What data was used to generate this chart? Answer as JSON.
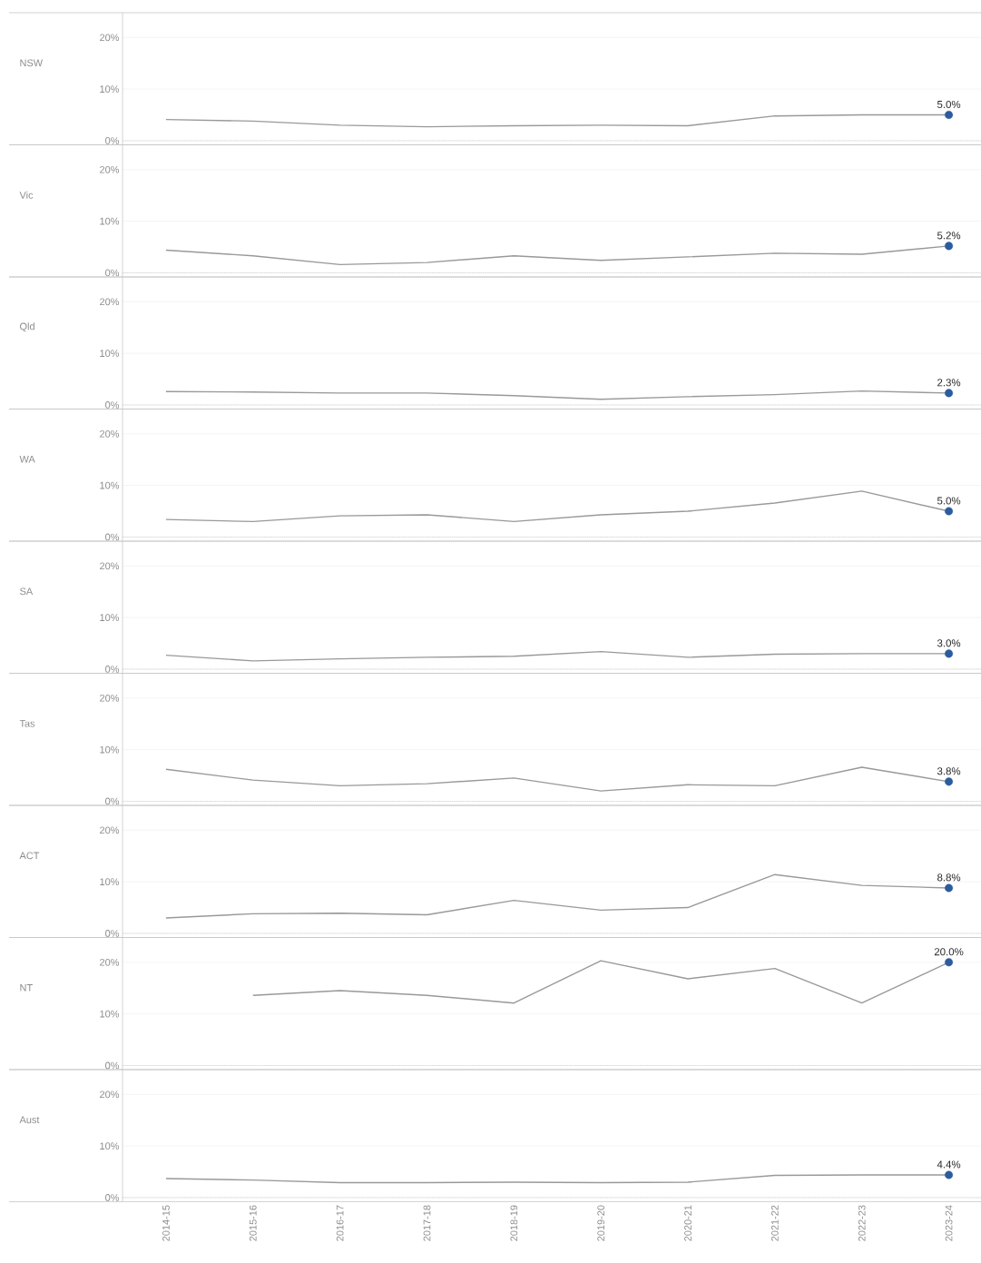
{
  "chart_data": [
    {
      "type": "line",
      "ylabel": "NSW",
      "categories": [
        "2014-15",
        "2015-16",
        "2016-17",
        "2017-18",
        "2018-19",
        "2019-20",
        "2020-21",
        "2021-22",
        "2022-23",
        "2023-24"
      ],
      "series": [
        {
          "type": "line",
          "color": "#999999",
          "values": [
            4.1,
            3.8,
            3.0,
            2.7,
            2.9,
            3.0,
            2.9,
            4.8,
            5.0,
            5.0
          ]
        },
        {
          "type": "scatter",
          "color": "#2b5c9e",
          "marker": "circle",
          "values": [
            null,
            null,
            null,
            null,
            null,
            null,
            null,
            null,
            null,
            5.0
          ],
          "value_labels": [
            null,
            null,
            null,
            null,
            null,
            null,
            null,
            null,
            null,
            "5.0%"
          ]
        }
      ],
      "ylim": [
        -0.8,
        24.8
      ],
      "yticks": [
        {
          "value": 0,
          "label": "0%"
        },
        {
          "value": 10,
          "label": "10%"
        },
        {
          "value": 20,
          "label": "20%"
        }
      ],
      "grid": "y",
      "tick_labels": "y",
      "ref_lines": [
        {
          "axis": "y",
          "value": 0,
          "line_style": "dotted",
          "color": "#bbbbbb"
        }
      ]
    },
    {
      "type": "line",
      "ylabel": "Vic",
      "categories": [
        "2014-15",
        "2015-16",
        "2016-17",
        "2017-18",
        "2018-19",
        "2019-20",
        "2020-21",
        "2021-22",
        "2022-23",
        "2023-24"
      ],
      "series": [
        {
          "type": "line",
          "color": "#999999",
          "values": [
            4.4,
            3.3,
            1.6,
            2.0,
            3.3,
            2.4,
            3.1,
            3.8,
            3.6,
            5.2
          ]
        },
        {
          "type": "scatter",
          "color": "#2b5c9e",
          "marker": "circle",
          "values": [
            null,
            null,
            null,
            null,
            null,
            null,
            null,
            null,
            null,
            5.2
          ],
          "value_labels": [
            null,
            null,
            null,
            null,
            null,
            null,
            null,
            null,
            null,
            "5.2%"
          ]
        }
      ],
      "ylim": [
        -0.8,
        24.8
      ],
      "yticks": [
        {
          "value": 0,
          "label": "0%"
        },
        {
          "value": 10,
          "label": "10%"
        },
        {
          "value": 20,
          "label": "20%"
        }
      ],
      "grid": "y",
      "tick_labels": "y",
      "ref_lines": [
        {
          "axis": "y",
          "value": 0,
          "line_style": "dotted",
          "color": "#bbbbbb"
        }
      ]
    },
    {
      "type": "line",
      "ylabel": "Qld",
      "categories": [
        "2014-15",
        "2015-16",
        "2016-17",
        "2017-18",
        "2018-19",
        "2019-20",
        "2020-21",
        "2021-22",
        "2022-23",
        "2023-24"
      ],
      "series": [
        {
          "type": "line",
          "color": "#999999",
          "values": [
            2.6,
            2.5,
            2.3,
            2.3,
            1.8,
            1.1,
            1.6,
            2.0,
            2.7,
            2.3
          ]
        },
        {
          "type": "scatter",
          "color": "#2b5c9e",
          "marker": "circle",
          "values": [
            null,
            null,
            null,
            null,
            null,
            null,
            null,
            null,
            null,
            2.3
          ],
          "value_labels": [
            null,
            null,
            null,
            null,
            null,
            null,
            null,
            null,
            null,
            "2.3%"
          ]
        }
      ],
      "ylim": [
        -0.8,
        24.8
      ],
      "yticks": [
        {
          "value": 0,
          "label": "0%"
        },
        {
          "value": 10,
          "label": "10%"
        },
        {
          "value": 20,
          "label": "20%"
        }
      ],
      "grid": "y",
      "tick_labels": "y",
      "ref_lines": [
        {
          "axis": "y",
          "value": 0,
          "line_style": "dotted",
          "color": "#bbbbbb"
        }
      ]
    },
    {
      "type": "line",
      "ylabel": "WA",
      "categories": [
        "2014-15",
        "2015-16",
        "2016-17",
        "2017-18",
        "2018-19",
        "2019-20",
        "2020-21",
        "2021-22",
        "2022-23",
        "2023-24"
      ],
      "series": [
        {
          "type": "line",
          "color": "#999999",
          "values": [
            3.4,
            3.0,
            4.1,
            4.3,
            3.0,
            4.3,
            5.0,
            6.6,
            8.9,
            5.0
          ]
        },
        {
          "type": "scatter",
          "color": "#2b5c9e",
          "marker": "circle",
          "values": [
            null,
            null,
            null,
            null,
            null,
            null,
            null,
            null,
            null,
            5.0
          ],
          "value_labels": [
            null,
            null,
            null,
            null,
            null,
            null,
            null,
            null,
            null,
            "5.0%"
          ]
        }
      ],
      "ylim": [
        -0.8,
        24.8
      ],
      "yticks": [
        {
          "value": 0,
          "label": "0%"
        },
        {
          "value": 10,
          "label": "10%"
        },
        {
          "value": 20,
          "label": "20%"
        }
      ],
      "grid": "y",
      "tick_labels": "y",
      "ref_lines": [
        {
          "axis": "y",
          "value": 0,
          "line_style": "dotted",
          "color": "#bbbbbb"
        }
      ]
    },
    {
      "type": "line",
      "ylabel": "SA",
      "categories": [
        "2014-15",
        "2015-16",
        "2016-17",
        "2017-18",
        "2018-19",
        "2019-20",
        "2020-21",
        "2021-22",
        "2022-23",
        "2023-24"
      ],
      "series": [
        {
          "type": "line",
          "color": "#999999",
          "values": [
            2.7,
            1.6,
            2.0,
            2.3,
            2.5,
            3.4,
            2.3,
            2.9,
            3.0,
            3.0
          ]
        },
        {
          "type": "scatter",
          "color": "#2b5c9e",
          "marker": "circle",
          "values": [
            null,
            null,
            null,
            null,
            null,
            null,
            null,
            null,
            null,
            3.0
          ],
          "value_labels": [
            null,
            null,
            null,
            null,
            null,
            null,
            null,
            null,
            null,
            "3.0%"
          ]
        }
      ],
      "ylim": [
        -0.8,
        24.8
      ],
      "yticks": [
        {
          "value": 0,
          "label": "0%"
        },
        {
          "value": 10,
          "label": "10%"
        },
        {
          "value": 20,
          "label": "20%"
        }
      ],
      "grid": "y",
      "tick_labels": "y",
      "ref_lines": [
        {
          "axis": "y",
          "value": 0,
          "line_style": "dotted",
          "color": "#bbbbbb"
        }
      ]
    },
    {
      "type": "line",
      "ylabel": "Tas",
      "categories": [
        "2014-15",
        "2015-16",
        "2016-17",
        "2017-18",
        "2018-19",
        "2019-20",
        "2020-21",
        "2021-22",
        "2022-23",
        "2023-24"
      ],
      "series": [
        {
          "type": "line",
          "color": "#999999",
          "values": [
            6.2,
            4.1,
            3.0,
            3.4,
            4.5,
            2.0,
            3.2,
            3.0,
            6.6,
            3.8
          ]
        },
        {
          "type": "scatter",
          "color": "#2b5c9e",
          "marker": "circle",
          "values": [
            null,
            null,
            null,
            null,
            null,
            null,
            null,
            null,
            null,
            3.8
          ],
          "value_labels": [
            null,
            null,
            null,
            null,
            null,
            null,
            null,
            null,
            null,
            "3.8%"
          ]
        }
      ],
      "ylim": [
        -0.8,
        24.8
      ],
      "yticks": [
        {
          "value": 0,
          "label": "0%"
        },
        {
          "value": 10,
          "label": "10%"
        },
        {
          "value": 20,
          "label": "20%"
        }
      ],
      "grid": "y",
      "tick_labels": "y",
      "ref_lines": [
        {
          "axis": "y",
          "value": 0,
          "line_style": "dotted",
          "color": "#bbbbbb"
        }
      ]
    },
    {
      "type": "line",
      "ylabel": "ACT",
      "categories": [
        "2014-15",
        "2015-16",
        "2016-17",
        "2017-18",
        "2018-19",
        "2019-20",
        "2020-21",
        "2021-22",
        "2022-23",
        "2023-24"
      ],
      "series": [
        {
          "type": "line",
          "color": "#999999",
          "values": [
            3.0,
            3.8,
            3.9,
            3.6,
            6.4,
            4.5,
            5.0,
            11.4,
            9.3,
            8.8
          ]
        },
        {
          "type": "scatter",
          "color": "#2b5c9e",
          "marker": "circle",
          "values": [
            null,
            null,
            null,
            null,
            null,
            null,
            null,
            null,
            null,
            8.8
          ],
          "value_labels": [
            null,
            null,
            null,
            null,
            null,
            null,
            null,
            null,
            null,
            "8.8%"
          ]
        }
      ],
      "ylim": [
        -0.8,
        24.8
      ],
      "yticks": [
        {
          "value": 0,
          "label": "0%"
        },
        {
          "value": 10,
          "label": "10%"
        },
        {
          "value": 20,
          "label": "20%"
        }
      ],
      "grid": "y",
      "tick_labels": "y",
      "ref_lines": [
        {
          "axis": "y",
          "value": 0,
          "line_style": "dotted",
          "color": "#bbbbbb"
        }
      ]
    },
    {
      "type": "line",
      "ylabel": "NT",
      "categories": [
        "2014-15",
        "2015-16",
        "2016-17",
        "2017-18",
        "2018-19",
        "2019-20",
        "2020-21",
        "2021-22",
        "2022-23",
        "2023-24"
      ],
      "series": [
        {
          "type": "line",
          "color": "#999999",
          "values": [
            null,
            13.6,
            14.5,
            13.6,
            12.1,
            20.3,
            16.8,
            18.8,
            12.1,
            20.0
          ]
        },
        {
          "type": "scatter",
          "color": "#2b5c9e",
          "marker": "circle",
          "values": [
            null,
            null,
            null,
            null,
            null,
            null,
            null,
            null,
            null,
            20.0
          ],
          "value_labels": [
            null,
            null,
            null,
            null,
            null,
            null,
            null,
            null,
            null,
            "20.0%"
          ]
        }
      ],
      "ylim": [
        -0.8,
        24.8
      ],
      "yticks": [
        {
          "value": 0,
          "label": "0%"
        },
        {
          "value": 10,
          "label": "10%"
        },
        {
          "value": 20,
          "label": "20%"
        }
      ],
      "grid": "y",
      "tick_labels": "y",
      "ref_lines": [
        {
          "axis": "y",
          "value": 0,
          "line_style": "dotted",
          "color": "#bbbbbb"
        }
      ]
    },
    {
      "type": "line",
      "ylabel": "Aust",
      "categories": [
        "2014-15",
        "2015-16",
        "2016-17",
        "2017-18",
        "2018-19",
        "2019-20",
        "2020-21",
        "2021-22",
        "2022-23",
        "2023-24"
      ],
      "series": [
        {
          "type": "line",
          "color": "#999999",
          "values": [
            3.7,
            3.4,
            2.9,
            2.9,
            3.0,
            2.9,
            3.0,
            4.3,
            4.4,
            4.4
          ]
        },
        {
          "type": "scatter",
          "color": "#2b5c9e",
          "marker": "circle",
          "values": [
            null,
            null,
            null,
            null,
            null,
            null,
            null,
            null,
            null,
            4.4
          ],
          "value_labels": [
            null,
            null,
            null,
            null,
            null,
            null,
            null,
            null,
            null,
            "4.4%"
          ]
        }
      ],
      "ylim": [
        -0.8,
        24.8
      ],
      "yticks": [
        {
          "value": 0,
          "label": "0%"
        },
        {
          "value": 10,
          "label": "10%"
        },
        {
          "value": 20,
          "label": "20%"
        }
      ],
      "grid": "y",
      "ref_lines": [
        {
          "axis": "y",
          "value": 0,
          "line_style": "dotted",
          "color": "#bbbbbb"
        }
      ]
    }
  ]
}
